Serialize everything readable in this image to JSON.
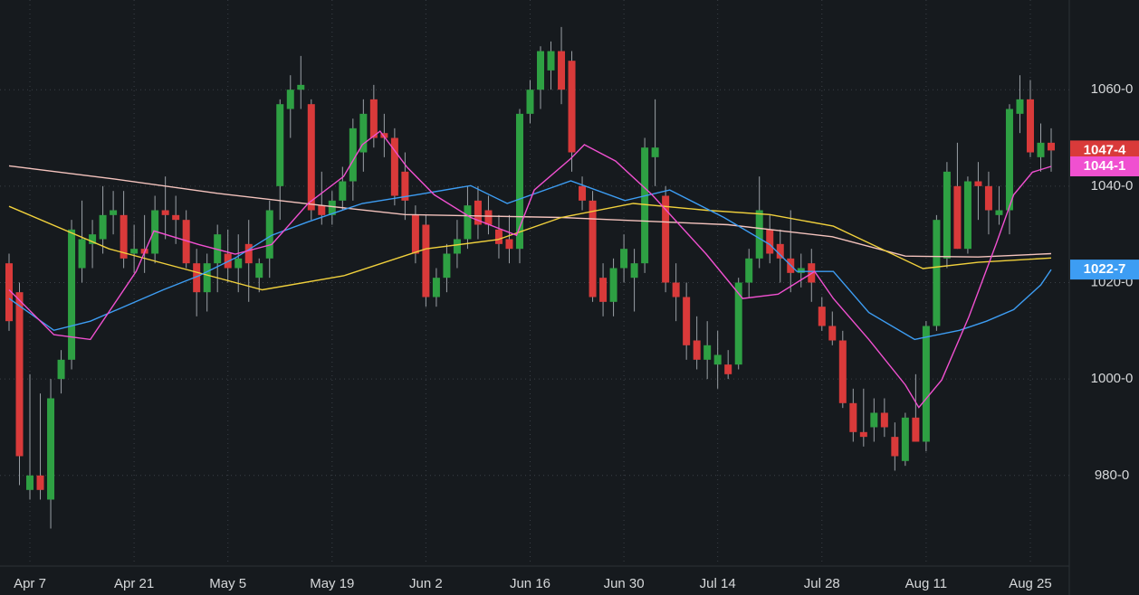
{
  "chart_data": {
    "type": "candlestick",
    "categories": [
      null,
      null,
      "Apr 7",
      null,
      null,
      null,
      null,
      null,
      null,
      null,
      null,
      null,
      "Apr 21",
      null,
      null,
      null,
      null,
      null,
      null,
      null,
      null,
      "May 5",
      null,
      null,
      null,
      null,
      null,
      null,
      null,
      null,
      null,
      "May 19",
      null,
      null,
      null,
      null,
      null,
      null,
      null,
      null,
      "Jun 2",
      null,
      null,
      null,
      null,
      null,
      null,
      null,
      null,
      null,
      "Jun 16",
      null,
      null,
      null,
      null,
      null,
      null,
      null,
      null,
      "Jun 30",
      null,
      null,
      null,
      null,
      null,
      null,
      null,
      null,
      "Jul 14",
      null,
      null,
      null,
      null,
      null,
      null,
      null,
      null,
      null,
      "Jul 28",
      null,
      null,
      null,
      null,
      null,
      null,
      null,
      null,
      null,
      "Aug 11",
      null,
      null,
      null,
      null,
      null,
      null,
      null,
      null,
      null,
      "Aug 25",
      null,
      null
    ],
    "open": [
      1024,
      1018,
      977,
      980,
      975,
      1000,
      1004,
      1023,
      1028,
      1029,
      1034,
      1034,
      1026,
      1027,
      1026,
      1035,
      1034,
      1033,
      1024,
      1018,
      1024,
      1026,
      1023,
      1028,
      1021,
      1025,
      1040,
      1056,
      1060,
      1057,
      1036,
      1034,
      1037,
      1041,
      1047,
      1058,
      1051,
      1050,
      1043,
      1034,
      1032,
      1017,
      1021,
      1026,
      1029,
      1037,
      1035,
      1031,
      1029,
      1027,
      1055,
      1060,
      1064,
      1068,
      1066,
      1040,
      1037,
      1021,
      1016,
      1023,
      1021,
      1024,
      1046,
      1038,
      1020,
      1017,
      1008,
      1004,
      1003,
      1003,
      1003,
      1020,
      1025,
      1031,
      1028,
      1025,
      1022,
      1024,
      1015,
      1011,
      1008,
      995,
      989,
      990,
      993,
      988,
      983,
      992,
      987,
      1011,
      1025,
      1040,
      1027,
      1041,
      1040,
      1034,
      1035,
      1055,
      1058,
      1046,
      1049
    ],
    "high": [
      1026,
      1020,
      1001,
      997,
      1000,
      1006,
      1033,
      1037,
      1033,
      1040,
      1039,
      1039,
      1032,
      1034,
      1038,
      1042,
      1038,
      1035,
      1027,
      1026,
      1032,
      1031,
      1030,
      1033,
      1025,
      1037,
      1058,
      1063,
      1067,
      1058,
      1043,
      1039,
      1044,
      1054,
      1058,
      1061,
      1055,
      1052,
      1047,
      1036,
      1034,
      1023,
      1028,
      1033,
      1040,
      1040,
      1038,
      1034,
      1034,
      1056,
      1062,
      1069,
      1070,
      1073,
      1068,
      1042,
      1039,
      1024,
      1025,
      1030,
      1027,
      1050,
      1058,
      1040,
      1024,
      1020,
      1013,
      1012,
      1010,
      1006,
      1021,
      1027,
      1042,
      1034,
      1031,
      1035,
      1026,
      1027,
      1017,
      1014,
      1010,
      998,
      998,
      996,
      996,
      991,
      993,
      1001,
      1012,
      1034,
      1045,
      1049,
      1042,
      1045,
      1043,
      1040,
      1057,
      1063,
      1062,
      1053,
      1052
    ],
    "low": [
      1010,
      978,
      975,
      975,
      969,
      997,
      1002,
      1020,
      1023,
      1026,
      1030,
      1023,
      1022,
      1022,
      1024,
      1029,
      1028,
      1023,
      1013,
      1014,
      1018,
      1020,
      1018,
      1016,
      1018,
      1021,
      1033,
      1050,
      1056,
      1033,
      1032,
      1032,
      1035,
      1037,
      1043,
      1048,
      1046,
      1036,
      1033,
      1024,
      1015,
      1015,
      1018,
      1023,
      1027,
      1029,
      1030,
      1025,
      1024,
      1024,
      1053,
      1056,
      1060,
      1057,
      1043,
      1035,
      1016,
      1013,
      1013,
      1020,
      1014,
      1022,
      1040,
      1018,
      1012,
      1004,
      1002,
      1000,
      998,
      1000,
      1002,
      1017,
      1023,
      1024,
      1020,
      1018,
      1019,
      1016,
      1010,
      1007,
      994,
      987,
      986,
      987,
      988,
      981,
      982,
      987,
      985,
      1010,
      1023,
      1027,
      1026,
      1033,
      1030,
      1032,
      1030,
      1051,
      1046,
      1043,
      1043
    ],
    "close": [
      1012,
      984,
      980,
      977,
      996,
      1004,
      1031,
      1029,
      1030,
      1034,
      1035,
      1025,
      1027,
      1026,
      1035,
      1034,
      1033,
      1024,
      1018,
      1024,
      1030,
      1023,
      1025,
      1024,
      1024,
      1035,
      1057,
      1060,
      1061,
      1035,
      1034,
      1037,
      1041,
      1052,
      1055,
      1050,
      1050,
      1038,
      1037,
      1026,
      1017,
      1021,
      1026,
      1029,
      1036,
      1032,
      1032,
      1028,
      1027,
      1055,
      1060,
      1068,
      1068,
      1060,
      1047,
      1037,
      1017,
      1016,
      1023,
      1027,
      1024,
      1048,
      1048,
      1020,
      1017,
      1007,
      1004,
      1007,
      1005,
      1001,
      1020,
      1025,
      1035,
      1026,
      1025,
      1022,
      1023,
      1020,
      1011,
      1008,
      995,
      989,
      988,
      993,
      990,
      984,
      992,
      987,
      1011,
      1033,
      1043,
      1027,
      1041,
      1040,
      1035,
      1035,
      1056,
      1058,
      1047,
      1049,
      1047.4
    ],
    "up_color": "#2ea043",
    "down_color": "#d93a3a",
    "lines": [
      {
        "color": "#f4c3bd",
        "x": [
          0,
          10,
          20,
          30,
          38,
          53,
          69,
          79,
          86,
          93,
          100
        ],
        "values": [
          1044.2,
          1041.5,
          1038.5,
          1036,
          1034.1,
          1033.5,
          1032,
          1029.5,
          1025.5,
          1025.3,
          1026.0
        ]
      },
      {
        "color": "#f0d03c",
        "x": [
          0,
          9.6,
          24.3,
          32.1,
          40,
          46.9,
          53,
          59.9,
          66.9,
          73,
          79.1,
          87.7,
          93,
          100
        ],
        "values": [
          1035.8,
          1027,
          1018.5,
          1021.4,
          1027,
          1028.9,
          1033.5,
          1036.4,
          1035,
          1034.1,
          1031.7,
          1022.9,
          1024.2,
          1025.1
        ]
      },
      {
        "color": "#3d9df3",
        "x": [
          0,
          4.3,
          7.8,
          14.8,
          18.2,
          21.7,
          25.2,
          28.7,
          33.9,
          39.1,
          44.3,
          47.8,
          53.9,
          59.1,
          63.4,
          68.6,
          73,
          75.6,
          79.1,
          82.5,
          86.9,
          91.2,
          93.8,
          96.4,
          99,
          100
        ],
        "values": [
          1016.7,
          1010.1,
          1012,
          1018.5,
          1021.4,
          1025.1,
          1029.8,
          1032.6,
          1036.4,
          1038.2,
          1040.1,
          1036.4,
          1041.1,
          1037,
          1039.2,
          1033.5,
          1027.9,
          1022.3,
          1022.3,
          1013.8,
          1008.2,
          1010.1,
          1012,
          1014.4,
          1019.5,
          1022.7
        ]
      },
      {
        "color": "#f050d0",
        "x": [
          0,
          4.3,
          7.8,
          12.2,
          13.9,
          18.2,
          21.7,
          25.2,
          28.7,
          32.1,
          33.9,
          35.6,
          38.2,
          40.8,
          44.3,
          48.7,
          50.4,
          53.9,
          55.2,
          58.2,
          61.7,
          66.9,
          70.4,
          73.8,
          77.3,
          79.1,
          82.5,
          86,
          87.3,
          89.5,
          92.1,
          94.7,
          96.4,
          98.2,
          100
        ],
        "values": [
          1018.5,
          1009.2,
          1008.2,
          1022.3,
          1030.7,
          1027.9,
          1025.9,
          1027.9,
          1036.4,
          1042,
          1048.6,
          1051.4,
          1043.9,
          1038.2,
          1033.5,
          1029.8,
          1039.2,
          1045.7,
          1048.6,
          1045.2,
          1038.2,
          1025.9,
          1016.7,
          1017.6,
          1022.3,
          1016.7,
          1008.2,
          998.8,
          994.1,
          999.8,
          1012.9,
          1027.9,
          1038.2,
          1042.9,
          1044.1
        ]
      }
    ],
    "price_tags": [
      {
        "value": 1047.4,
        "label": "1047-4",
        "color": "#d93a3a"
      },
      {
        "value": 1044.1,
        "label": "1044-1",
        "color": "#f050d0"
      },
      {
        "value": 1022.7,
        "label": "1022-7",
        "color": "#3d9df3"
      }
    ],
    "ylim": [
      961.4,
      1078.6
    ],
    "yticks": [
      {
        "value": 980,
        "label": "980-0"
      },
      {
        "value": 1000,
        "label": "1000-0"
      },
      {
        "value": 1020,
        "label": "1020-0"
      },
      {
        "value": 1040,
        "label": "1040-0"
      },
      {
        "value": 1060,
        "label": "1060-0"
      }
    ],
    "grid": true
  }
}
